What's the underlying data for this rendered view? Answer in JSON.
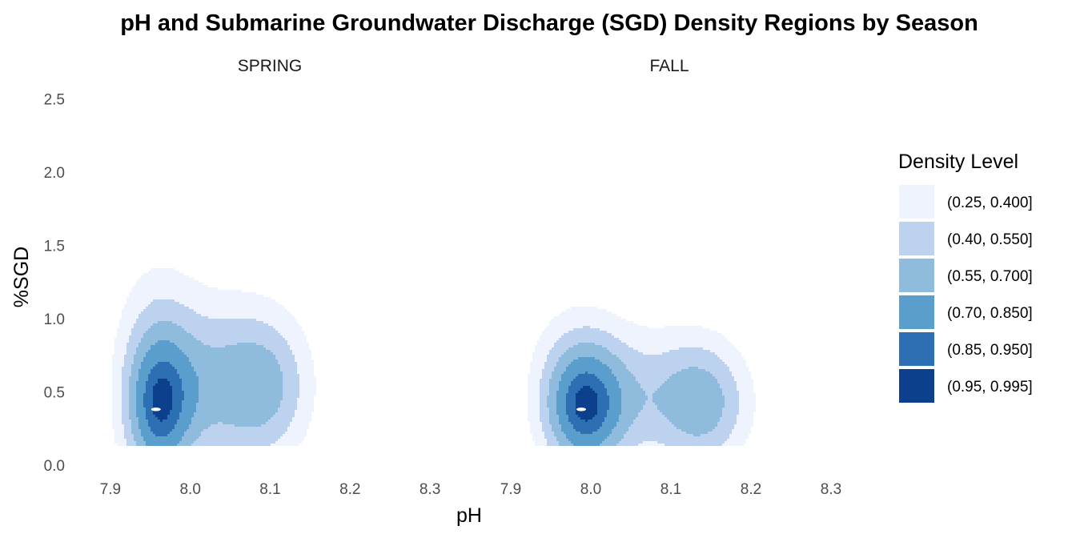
{
  "chart_data": {
    "type": "density-contour",
    "title": "pH and Submarine Groundwater Discharge (SGD) Density Regions by Season",
    "xlabel": "pH",
    "ylabel": "%SGD",
    "facets": [
      "SPRING",
      "FALL"
    ],
    "xlim": [
      7.86,
      8.34
    ],
    "ylim": [
      -0.05,
      2.6
    ],
    "x_ticks": [
      7.9,
      8.0,
      8.1,
      8.2,
      8.3
    ],
    "x_tick_labels": [
      "7.9",
      "8.0",
      "8.1",
      "8.2",
      "8.3"
    ],
    "y_ticks": [
      0.0,
      0.5,
      1.0,
      1.5,
      2.0,
      2.5
    ],
    "y_tick_labels": [
      "0.0",
      "0.5",
      "1.0",
      "1.5",
      "2.0",
      "2.5"
    ],
    "grid": false,
    "legend": {
      "title": "Density Level",
      "position": "right",
      "entries": [
        {
          "label": "(0.25, 0.400]",
          "color": "#eef3fd"
        },
        {
          "label": "(0.40, 0.550]",
          "color": "#bdd2ee"
        },
        {
          "label": "(0.55, 0.700]",
          "color": "#8fbcdc"
        },
        {
          "label": "(0.70, 0.850]",
          "color": "#5a9ecd"
        },
        {
          "label": "(0.85, 0.950]",
          "color": "#2c6fb3"
        },
        {
          "label": "(0.95, 0.995]",
          "color": "#0c3f8c"
        }
      ]
    },
    "density_peaks": [
      {
        "facet": "SPRING",
        "peaks": [
          {
            "pH": 7.957,
            "sgd": 0.38
          },
          {
            "pH": 8.08,
            "sgd": 0.45
          }
        ]
      },
      {
        "facet": "FALL",
        "peaks": [
          {
            "pH": 7.988,
            "sgd": 0.38
          },
          {
            "pH": 8.145,
            "sgd": 0.4
          }
        ]
      }
    ]
  }
}
